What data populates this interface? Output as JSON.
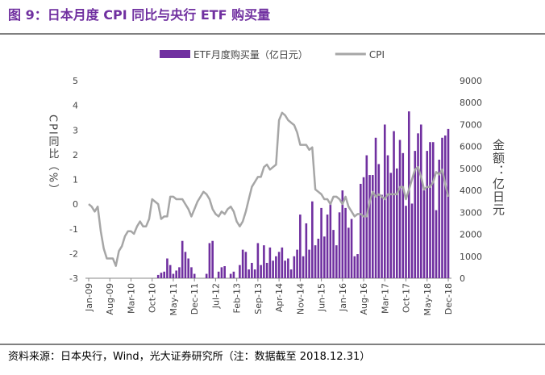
{
  "chart_data": {
    "type": "bar_line",
    "title": "图 9：日本月度 CPI 同比与央行 ETF 购买量",
    "ylabel": "CPI同比（%）",
    "y2label": "金额：亿日元",
    "source": "资料来源：日本央行，Wind，光大证券研究所（注：数据截至 2018.12.31）",
    "categories": [
      "Jan-09",
      null,
      null,
      null,
      null,
      null,
      null,
      "Aug-09",
      null,
      null,
      null,
      null,
      null,
      null,
      "Mar-10",
      null,
      null,
      null,
      null,
      null,
      null,
      "Oct-10",
      null,
      null,
      null,
      null,
      null,
      null,
      "May-11",
      null,
      null,
      null,
      null,
      null,
      null,
      "Dec-11",
      null,
      null,
      null,
      null,
      null,
      null,
      "Jul-12",
      null,
      null,
      null,
      null,
      null,
      null,
      "Feb-13",
      null,
      null,
      null,
      null,
      null,
      null,
      "Sep-13",
      null,
      null,
      null,
      null,
      null,
      null,
      "Apr-14",
      null,
      null,
      null,
      null,
      null,
      null,
      "Nov-14",
      null,
      null,
      null,
      null,
      null,
      null,
      "Jun-15",
      null,
      null,
      null,
      null,
      null,
      null,
      "Jan-16",
      null,
      null,
      null,
      null,
      null,
      null,
      "Aug-16",
      null,
      null,
      null,
      null,
      null,
      null,
      "Mar-17",
      null,
      null,
      null,
      null,
      null,
      null,
      "Oct-17",
      null,
      null,
      null,
      null,
      null,
      null,
      "May-18",
      null,
      null,
      null,
      null,
      null,
      null,
      "Dec-18"
    ],
    "series": [
      {
        "name": "ETF月度购买量（亿日元）",
        "color": "#7030a0",
        "axis": "y2",
        "kind": "bar",
        "values": [
          0,
          0,
          0,
          0,
          0,
          0,
          0,
          0,
          0,
          0,
          0,
          0,
          0,
          0,
          0,
          0,
          0,
          0,
          0,
          0,
          0,
          0,
          0,
          150,
          250,
          300,
          900,
          600,
          200,
          350,
          500,
          1700,
          1200,
          900,
          500,
          200,
          0,
          0,
          0,
          200,
          1600,
          1700,
          0,
          300,
          500,
          550,
          0,
          200,
          300,
          0,
          600,
          1300,
          1200,
          400,
          700,
          400,
          1600,
          600,
          1500,
          700,
          1400,
          800,
          1000,
          1200,
          1400,
          800,
          900,
          400,
          1000,
          1300,
          2900,
          1000,
          2500,
          1300,
          3500,
          1500,
          1800,
          3200,
          1900,
          2900,
          3400,
          2200,
          1500,
          3000,
          4000,
          3200,
          2300,
          2700,
          1000,
          1100,
          4300,
          4600,
          5600,
          4700,
          4700,
          6400,
          5200,
          3800,
          7000,
          5600,
          4800,
          6700,
          5000,
          6300,
          5700,
          3300,
          7600,
          3400,
          5800,
          6600,
          7000,
          4000,
          5800,
          6200,
          6200,
          3100,
          5400,
          6400,
          6500,
          6800
        ]
      },
      {
        "name": "CPI",
        "color": "#a6a6a6",
        "kind": "line",
        "values": [
          0.0,
          -0.1,
          -0.3,
          -0.1,
          -1.1,
          -1.8,
          -2.2,
          -2.2,
          -2.2,
          -2.5,
          -1.9,
          -1.7,
          -1.3,
          -1.1,
          -1.1,
          -1.2,
          -0.9,
          -0.7,
          -0.9,
          -0.9,
          -0.6,
          0.2,
          0.1,
          0.0,
          -0.6,
          -0.5,
          -0.5,
          0.3,
          0.3,
          0.2,
          0.2,
          0.2,
          0.0,
          -0.2,
          -0.5,
          -0.2,
          0.1,
          0.3,
          0.5,
          0.4,
          0.2,
          -0.2,
          -0.4,
          -0.5,
          -0.3,
          -0.4,
          -0.2,
          -0.1,
          -0.3,
          -0.7,
          -0.9,
          -0.7,
          -0.3,
          0.2,
          0.7,
          0.9,
          1.1,
          1.1,
          1.5,
          1.6,
          1.4,
          1.5,
          1.6,
          3.4,
          3.7,
          3.6,
          3.4,
          3.3,
          3.2,
          2.9,
          2.4,
          2.4,
          2.4,
          2.2,
          2.3,
          0.6,
          0.5,
          0.4,
          0.2,
          0.2,
          0.0,
          0.3,
          0.3,
          0.2,
          0.0,
          0.3,
          -0.1,
          -0.3,
          -0.5,
          -0.4,
          -0.4,
          -0.5,
          -0.5,
          0.1,
          0.5,
          0.3,
          0.4,
          0.3,
          0.2,
          0.4,
          0.4,
          0.4,
          0.4,
          0.7,
          0.7,
          0.2,
          0.6,
          1.0,
          1.4,
          1.5,
          1.1,
          0.6,
          0.7,
          0.7,
          0.9,
          1.3,
          1.2,
          1.4,
          0.8,
          0.3
        ]
      }
    ],
    "ylim": [
      -3,
      5
    ],
    "yticks": [
      -3,
      -2,
      -1,
      0,
      1,
      2,
      3,
      4,
      5
    ],
    "y2lim": [
      0,
      9000
    ],
    "y2ticks": [
      0,
      1000,
      2000,
      3000,
      4000,
      5000,
      6000,
      7000,
      8000,
      9000
    ],
    "legend": "top"
  }
}
